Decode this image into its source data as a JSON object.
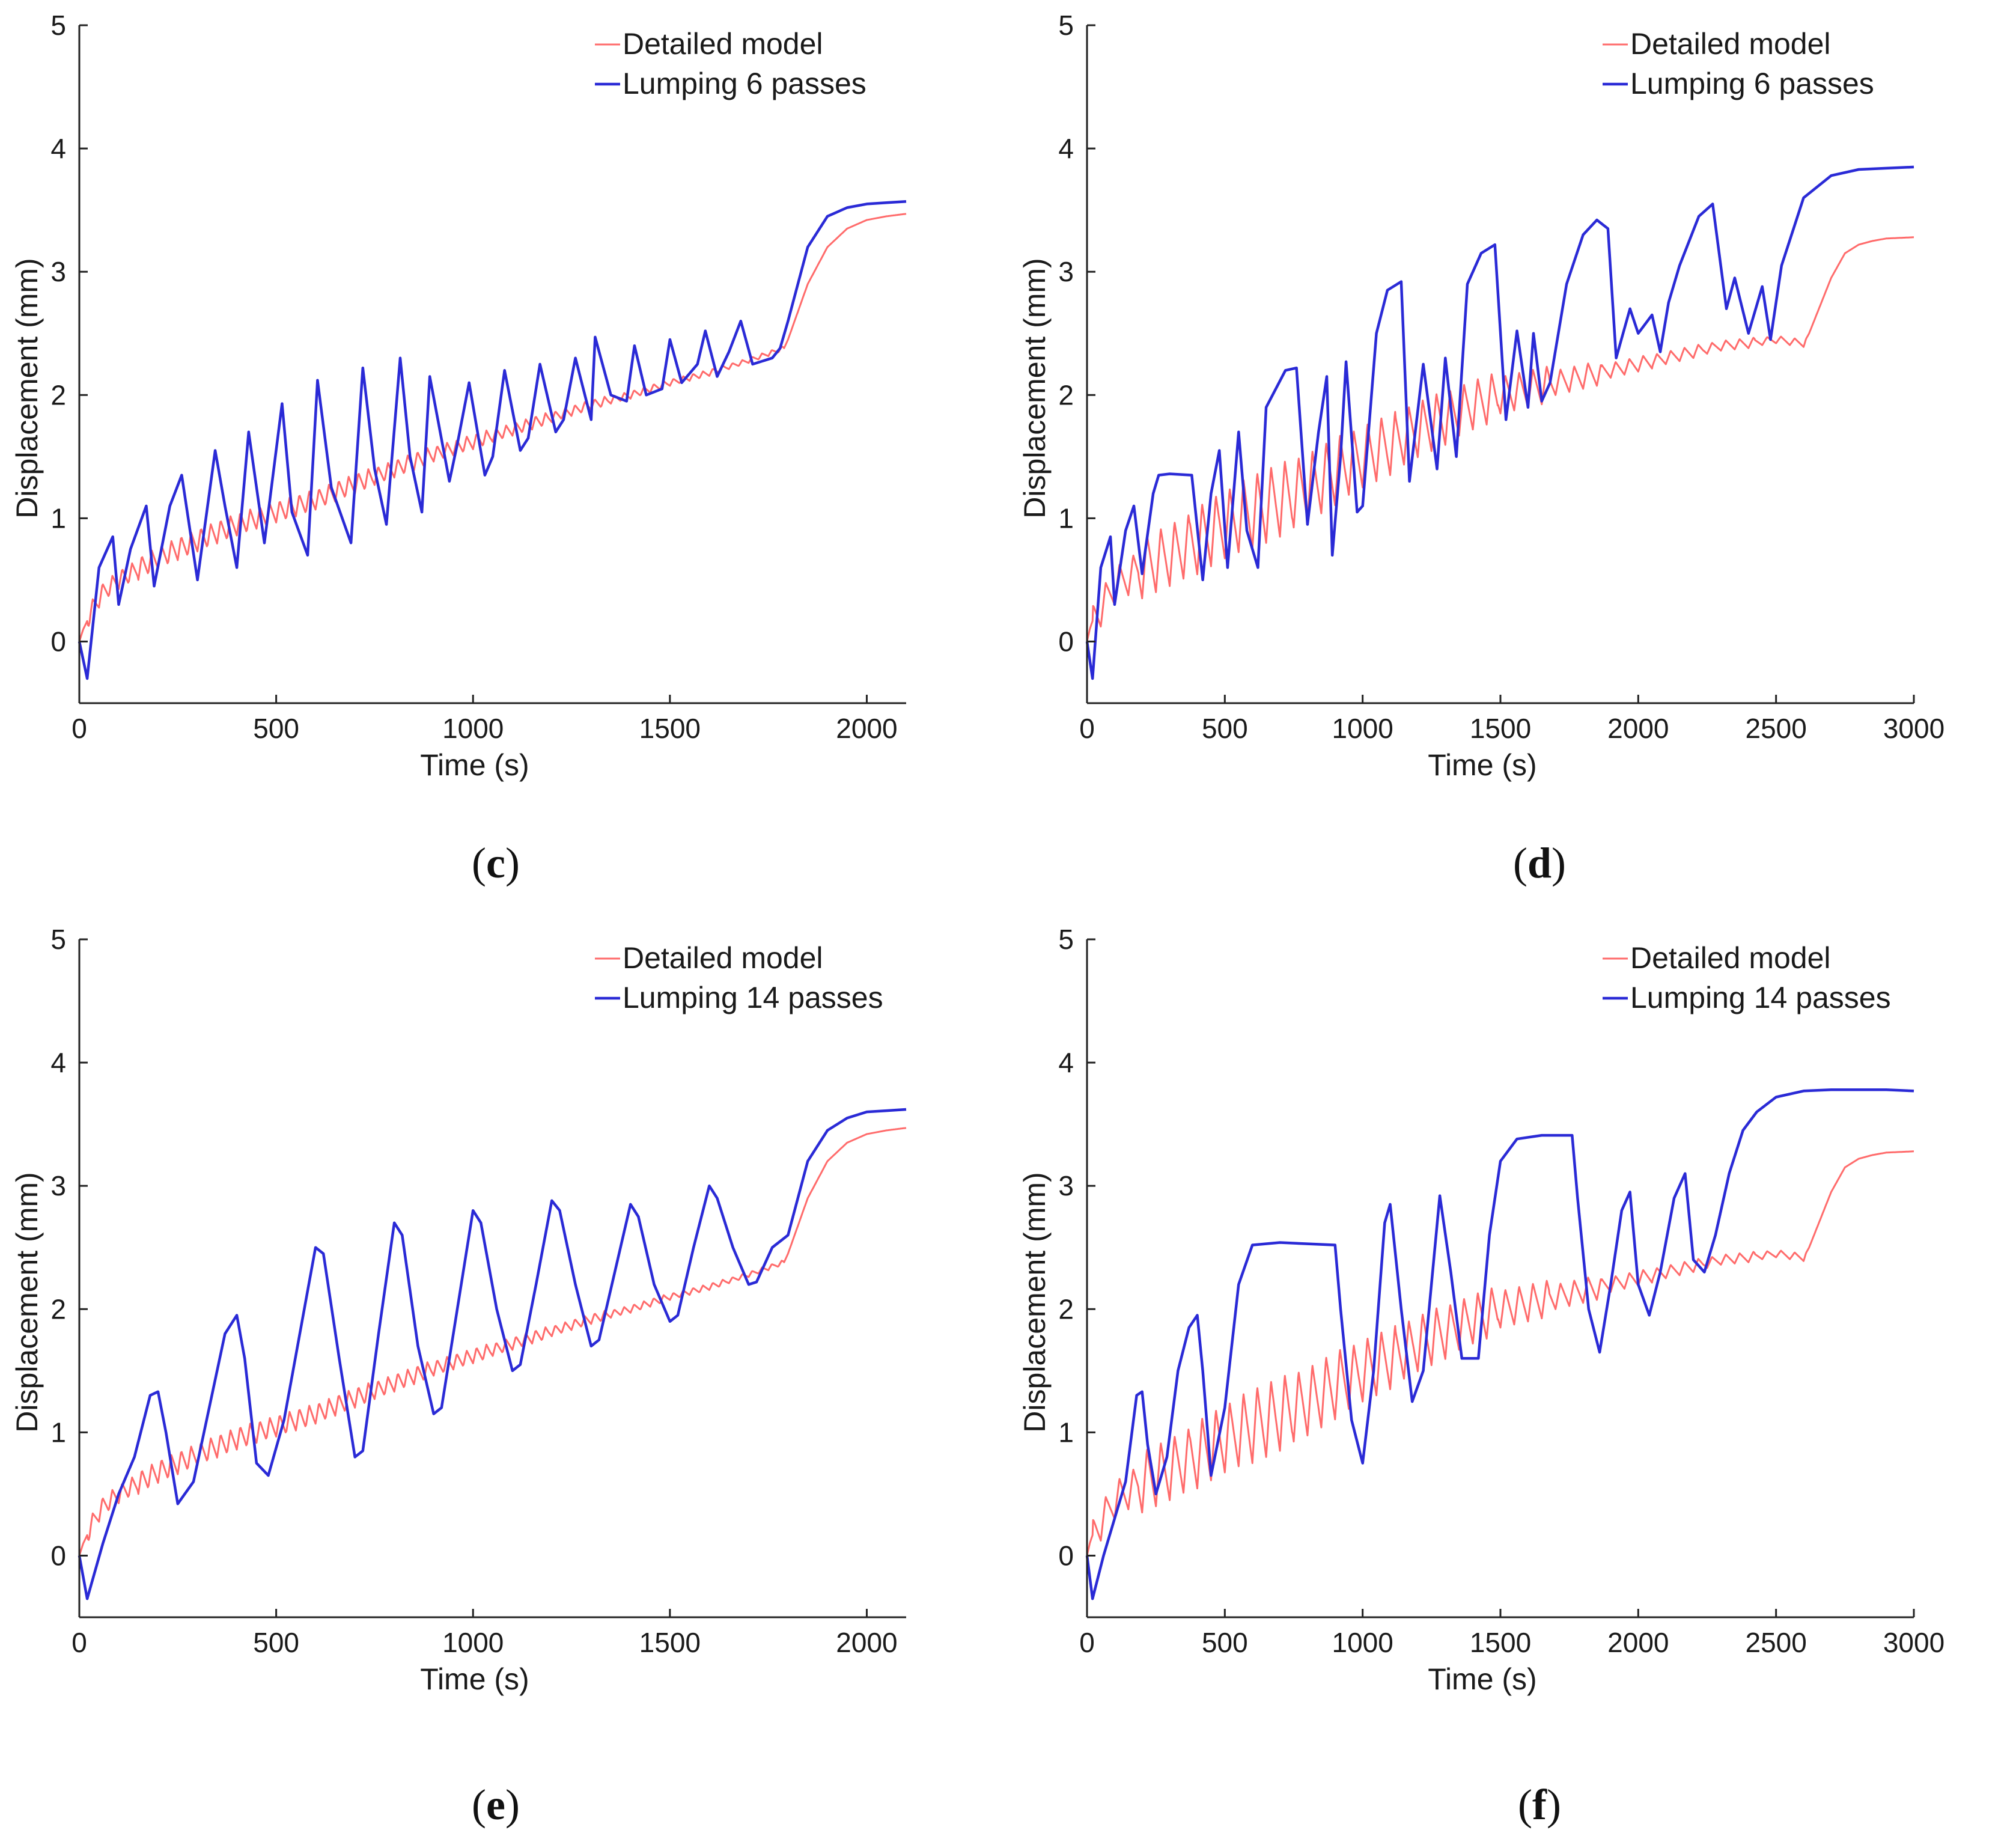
{
  "chart_data": [
    {
      "panel_label": "c",
      "type": "line",
      "xlabel": "Time (s)",
      "ylabel": "Displacement (mm)",
      "xlim": [
        0,
        2100
      ],
      "ylim": [
        -0.5,
        5
      ],
      "xticks": [
        0,
        500,
        1000,
        1500,
        2000
      ],
      "yticks": [
        0,
        1,
        2,
        3,
        4,
        5
      ],
      "legend_position": "top-right",
      "grid": false,
      "series": [
        {
          "name": "Detailed model",
          "color": "#ff6b6b",
          "x": [
            0,
            10,
            25,
            30,
            60,
            100,
            200,
            300,
            400,
            500,
            600,
            700,
            800,
            900,
            1000,
            1100,
            1200,
            1300,
            1400,
            1500,
            1600,
            1700,
            1790,
            1800,
            1850,
            1900,
            1950,
            2000,
            2050,
            2100
          ],
          "y": [
            0,
            0.1,
            0.2,
            0.25,
            0.4,
            0.5,
            0.68,
            0.82,
            0.95,
            1.05,
            1.15,
            1.28,
            1.4,
            1.52,
            1.62,
            1.72,
            1.82,
            1.92,
            2.0,
            2.1,
            2.18,
            2.28,
            2.38,
            2.45,
            2.9,
            3.2,
            3.35,
            3.42,
            3.45,
            3.47
          ],
          "osc_amplitude": [
            0.15,
            0.18,
            0.18,
            0.17,
            0.16,
            0.14,
            0.12,
            0.1,
            0.08,
            0.06,
            0.05,
            0.04
          ]
        },
        {
          "name": "Lumping 6 passes",
          "color": "#2a2ad6",
          "x": [
            0,
            20,
            50,
            85,
            100,
            130,
            170,
            190,
            230,
            260,
            300,
            345,
            370,
            400,
            430,
            470,
            515,
            540,
            580,
            605,
            640,
            690,
            720,
            750,
            780,
            815,
            840,
            870,
            890,
            940,
            960,
            990,
            1030,
            1050,
            1080,
            1120,
            1140,
            1170,
            1210,
            1230,
            1260,
            1300,
            1310,
            1350,
            1390,
            1410,
            1440,
            1480,
            1500,
            1530,
            1570,
            1590,
            1620,
            1650,
            1680,
            1710,
            1760,
            1780,
            1800,
            1850,
            1900,
            1950,
            2000,
            2050,
            2100
          ],
          "y": [
            0,
            -0.3,
            0.6,
            0.85,
            0.3,
            0.75,
            1.1,
            0.45,
            1.1,
            1.35,
            0.5,
            1.55,
            1.1,
            0.6,
            1.7,
            0.8,
            1.93,
            1.05,
            0.7,
            2.12,
            1.25,
            0.8,
            2.22,
            1.4,
            0.95,
            2.3,
            1.5,
            1.05,
            2.15,
            1.3,
            1.6,
            2.1,
            1.35,
            1.5,
            2.2,
            1.55,
            1.65,
            2.25,
            1.7,
            1.8,
            2.3,
            1.8,
            2.47,
            2.0,
            1.95,
            2.4,
            2.0,
            2.05,
            2.45,
            2.1,
            2.25,
            2.52,
            2.15,
            2.35,
            2.6,
            2.25,
            2.3,
            2.38,
            2.6,
            3.2,
            3.45,
            3.52,
            3.55,
            3.56,
            3.57
          ]
        }
      ]
    },
    {
      "panel_label": "d",
      "type": "line",
      "xlabel": "Time (s)",
      "ylabel": "Displacement (mm)",
      "xlim": [
        0,
        3000
      ],
      "ylim": [
        -0.5,
        5
      ],
      "xticks": [
        0,
        500,
        1000,
        1500,
        2000,
        2500,
        3000
      ],
      "yticks": [
        0,
        1,
        2,
        3,
        4,
        5
      ],
      "legend_position": "top-right",
      "grid": false,
      "series": [
        {
          "name": "Detailed model",
          "color": "#ff6b6b",
          "x": [
            0,
            10,
            25,
            60,
            100,
            200,
            300,
            400,
            500,
            600,
            700,
            800,
            900,
            1000,
            1100,
            1200,
            1300,
            1400,
            1500,
            1600,
            1700,
            1800,
            1900,
            2000,
            2100,
            2200,
            2300,
            2400,
            2500,
            2600,
            2620,
            2700,
            2750,
            2800,
            2850,
            2900,
            3000
          ],
          "y": [
            0,
            0.1,
            0.2,
            0.3,
            0.45,
            0.6,
            0.7,
            0.82,
            0.95,
            1.05,
            1.15,
            1.25,
            1.38,
            1.5,
            1.6,
            1.72,
            1.82,
            1.92,
            2.0,
            2.05,
            2.1,
            2.15,
            2.2,
            2.25,
            2.3,
            2.35,
            2.4,
            2.42,
            2.45,
            2.42,
            2.5,
            2.95,
            3.15,
            3.22,
            3.25,
            3.27,
            3.28
          ],
          "osc_amplitude": [
            0.3,
            0.5,
            0.55,
            0.6,
            0.55,
            0.5,
            0.45,
            0.4,
            0.3,
            0.2,
            0.12,
            0.1,
            0.08,
            0.06
          ]
        },
        {
          "name": "Lumping 6 passes",
          "color": "#2a2ad6",
          "x": [
            0,
            20,
            50,
            85,
            100,
            140,
            170,
            200,
            240,
            260,
            300,
            380,
            420,
            450,
            480,
            510,
            550,
            580,
            620,
            650,
            720,
            760,
            800,
            840,
            870,
            890,
            920,
            940,
            980,
            1000,
            1050,
            1090,
            1140,
            1170,
            1220,
            1270,
            1300,
            1340,
            1380,
            1430,
            1480,
            1520,
            1560,
            1600,
            1620,
            1650,
            1680,
            1740,
            1800,
            1850,
            1890,
            1920,
            1970,
            2000,
            2050,
            2080,
            2110,
            2150,
            2220,
            2270,
            2320,
            2350,
            2400,
            2450,
            2480,
            2520,
            2600,
            2700,
            2800,
            2900,
            3000
          ],
          "y": [
            0,
            -0.3,
            0.6,
            0.85,
            0.3,
            0.9,
            1.1,
            0.55,
            1.2,
            1.35,
            1.36,
            1.35,
            0.5,
            1.2,
            1.55,
            0.6,
            1.7,
            0.9,
            0.6,
            1.9,
            2.2,
            2.22,
            0.95,
            1.7,
            2.15,
            0.7,
            1.5,
            2.27,
            1.05,
            1.1,
            2.5,
            2.85,
            2.92,
            1.3,
            2.25,
            1.4,
            2.3,
            1.5,
            2.9,
            3.15,
            3.22,
            1.8,
            2.52,
            1.9,
            2.5,
            1.95,
            2.1,
            2.9,
            3.3,
            3.42,
            3.35,
            2.3,
            2.7,
            2.5,
            2.65,
            2.35,
            2.75,
            3.05,
            3.45,
            3.55,
            2.7,
            2.95,
            2.5,
            2.88,
            2.45,
            3.05,
            3.6,
            3.78,
            3.83,
            3.84,
            3.85
          ]
        }
      ]
    },
    {
      "panel_label": "e",
      "type": "line",
      "xlabel": "Time (s)",
      "ylabel": "Displacement (mm)",
      "xlim": [
        0,
        2100
      ],
      "ylim": [
        -0.5,
        5
      ],
      "xticks": [
        0,
        500,
        1000,
        1500,
        2000
      ],
      "yticks": [
        0,
        1,
        2,
        3,
        4,
        5
      ],
      "legend_position": "top-right",
      "grid": false,
      "series": [
        {
          "name": "Detailed model",
          "color": "#ff6b6b",
          "x": [
            0,
            10,
            25,
            30,
            60,
            100,
            200,
            300,
            400,
            500,
            600,
            700,
            800,
            900,
            1000,
            1100,
            1200,
            1300,
            1400,
            1500,
            1600,
            1700,
            1790,
            1800,
            1850,
            1900,
            1950,
            2000,
            2050,
            2100
          ],
          "y": [
            0,
            0.1,
            0.2,
            0.25,
            0.4,
            0.5,
            0.68,
            0.82,
            0.95,
            1.05,
            1.15,
            1.28,
            1.4,
            1.52,
            1.62,
            1.72,
            1.82,
            1.92,
            2.0,
            2.1,
            2.18,
            2.28,
            2.38,
            2.45,
            2.9,
            3.2,
            3.35,
            3.42,
            3.45,
            3.47
          ],
          "osc_amplitude": [
            0.15,
            0.18,
            0.18,
            0.17,
            0.16,
            0.14,
            0.12,
            0.1,
            0.08,
            0.06,
            0.05,
            0.04
          ]
        },
        {
          "name": "Lumping 14 passes",
          "color": "#2a2ad6",
          "x": [
            0,
            20,
            60,
            100,
            140,
            180,
            200,
            220,
            250,
            290,
            330,
            370,
            400,
            420,
            450,
            480,
            520,
            560,
            600,
            620,
            660,
            700,
            720,
            760,
            800,
            820,
            860,
            900,
            920,
            960,
            1000,
            1020,
            1060,
            1100,
            1120,
            1160,
            1200,
            1220,
            1260,
            1300,
            1320,
            1360,
            1400,
            1420,
            1460,
            1500,
            1520,
            1560,
            1600,
            1620,
            1660,
            1700,
            1720,
            1760,
            1800,
            1850,
            1900,
            1950,
            2000,
            2050,
            2100
          ],
          "y": [
            0,
            -0.35,
            0.1,
            0.5,
            0.8,
            1.3,
            1.33,
            1.0,
            0.42,
            0.6,
            1.2,
            1.8,
            1.95,
            1.6,
            0.75,
            0.65,
            1.1,
            1.8,
            2.5,
            2.45,
            1.6,
            0.8,
            0.85,
            1.8,
            2.7,
            2.6,
            1.7,
            1.15,
            1.2,
            2.0,
            2.8,
            2.7,
            2.0,
            1.5,
            1.55,
            2.2,
            2.88,
            2.8,
            2.2,
            1.7,
            1.75,
            2.3,
            2.85,
            2.75,
            2.2,
            1.9,
            1.95,
            2.5,
            3.0,
            2.9,
            2.5,
            2.2,
            2.22,
            2.5,
            2.6,
            3.2,
            3.45,
            3.55,
            3.6,
            3.61,
            3.62
          ]
        }
      ]
    },
    {
      "panel_label": "f",
      "type": "line",
      "xlabel": "Time (s)",
      "ylabel": "Displacement (mm)",
      "xlim": [
        0,
        3000
      ],
      "ylim": [
        -0.5,
        5
      ],
      "xticks": [
        0,
        500,
        1000,
        1500,
        2000,
        2500,
        3000
      ],
      "yticks": [
        0,
        1,
        2,
        3,
        4,
        5
      ],
      "legend_position": "top-right",
      "grid": false,
      "series": [
        {
          "name": "Detailed model",
          "color": "#ff6b6b",
          "x": [
            0,
            10,
            25,
            60,
            100,
            200,
            300,
            400,
            500,
            600,
            700,
            800,
            900,
            1000,
            1100,
            1200,
            1300,
            1400,
            1500,
            1600,
            1700,
            1800,
            1900,
            2000,
            2100,
            2200,
            2300,
            2400,
            2500,
            2600,
            2620,
            2700,
            2750,
            2800,
            2850,
            2900,
            3000
          ],
          "y": [
            0,
            0.1,
            0.2,
            0.3,
            0.45,
            0.6,
            0.7,
            0.82,
            0.95,
            1.05,
            1.15,
            1.25,
            1.38,
            1.5,
            1.6,
            1.72,
            1.82,
            1.92,
            2.0,
            2.05,
            2.1,
            2.15,
            2.2,
            2.25,
            2.3,
            2.35,
            2.4,
            2.42,
            2.45,
            2.42,
            2.5,
            2.95,
            3.15,
            3.22,
            3.25,
            3.27,
            3.28
          ],
          "osc_amplitude": [
            0.3,
            0.5,
            0.55,
            0.6,
            0.55,
            0.5,
            0.45,
            0.4,
            0.3,
            0.2,
            0.12,
            0.1,
            0.08,
            0.06
          ]
        },
        {
          "name": "Lumping 14 passes",
          "color": "#2a2ad6",
          "x": [
            0,
            20,
            60,
            100,
            140,
            180,
            200,
            220,
            250,
            290,
            330,
            370,
            400,
            420,
            450,
            500,
            550,
            600,
            700,
            800,
            900,
            920,
            960,
            1000,
            1040,
            1080,
            1100,
            1140,
            1180,
            1220,
            1280,
            1320,
            1360,
            1420,
            1460,
            1500,
            1560,
            1650,
            1760,
            1780,
            1820,
            1860,
            1900,
            1940,
            1970,
            2000,
            2040,
            2080,
            2130,
            2170,
            2200,
            2240,
            2280,
            2330,
            2380,
            2430,
            2500,
            2600,
            2700,
            2800,
            2900,
            3000
          ],
          "y": [
            0,
            -0.35,
            0.0,
            0.3,
            0.6,
            1.3,
            1.33,
            0.9,
            0.5,
            0.8,
            1.5,
            1.85,
            1.95,
            1.5,
            0.65,
            1.2,
            2.2,
            2.52,
            2.54,
            2.53,
            2.52,
            2.0,
            1.1,
            0.75,
            1.5,
            2.7,
            2.85,
            2.0,
            1.25,
            1.5,
            2.92,
            2.3,
            1.6,
            1.6,
            2.6,
            3.2,
            3.38,
            3.41,
            3.41,
            2.9,
            2.0,
            1.65,
            2.2,
            2.8,
            2.95,
            2.2,
            1.95,
            2.3,
            2.9,
            3.1,
            2.4,
            2.3,
            2.6,
            3.1,
            3.45,
            3.6,
            3.72,
            3.77,
            3.78,
            3.78,
            3.78,
            3.77
          ]
        }
      ]
    }
  ],
  "captions": [
    "(c)",
    "(d)",
    "(e)",
    "(f)"
  ]
}
